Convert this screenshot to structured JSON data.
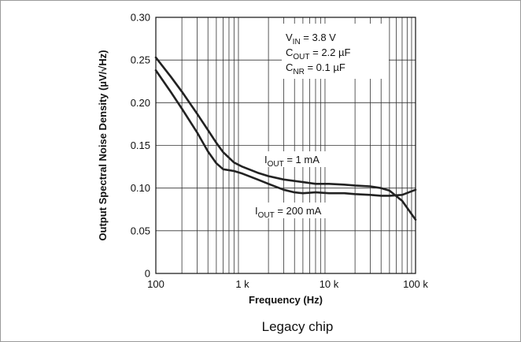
{
  "chart_data": {
    "type": "line",
    "xlabel": "Frequency (Hz)",
    "ylabel": "Output Spectral Noise Density (µV/√Hz)",
    "xscale": "log",
    "xlim": [
      100,
      100000
    ],
    "ylim": [
      0,
      0.3
    ],
    "grid": true,
    "x_ticks": [
      {
        "value": 100,
        "label": "100"
      },
      {
        "value": 1000,
        "label": "1 k"
      },
      {
        "value": 10000,
        "label": "10 k"
      },
      {
        "value": 100000,
        "label": "100 k"
      }
    ],
    "y_ticks": [
      {
        "value": 0,
        "label": "0"
      },
      {
        "value": 0.05,
        "label": "0.05"
      },
      {
        "value": 0.1,
        "label": "0.10"
      },
      {
        "value": 0.15,
        "label": "0.15"
      },
      {
        "value": 0.2,
        "label": "0.20"
      },
      {
        "value": 0.25,
        "label": "0.25"
      },
      {
        "value": 0.3,
        "label": "0.30"
      }
    ],
    "conditions": [
      {
        "main": "V",
        "sub": "IN",
        "rest": " = 3.8 V"
      },
      {
        "main": "C",
        "sub": "OUT",
        "rest": " = 2.2 µF"
      },
      {
        "main": "C",
        "sub": "NR",
        "rest": " = 0.1 µF"
      }
    ],
    "series": [
      {
        "name": "I_OUT = 1 mA",
        "label_parts": {
          "main": "I",
          "sub": "OUT",
          "rest": " = 1 mA"
        },
        "color": "#222222",
        "x": [
          100,
          150,
          200,
          300,
          400,
          500,
          600,
          800,
          1000,
          1500,
          2000,
          3000,
          5000,
          7000,
          10000,
          15000,
          20000,
          30000,
          40000,
          50000,
          70000,
          100000
        ],
        "y": [
          0.253,
          0.23,
          0.213,
          0.187,
          0.168,
          0.153,
          0.142,
          0.13,
          0.125,
          0.118,
          0.114,
          0.11,
          0.107,
          0.105,
          0.105,
          0.104,
          0.103,
          0.102,
          0.1,
          0.097,
          0.085,
          0.063
        ]
      },
      {
        "name": "I_OUT = 200 mA",
        "label_parts": {
          "main": "I",
          "sub": "OUT",
          "rest": " = 200 mA"
        },
        "color": "#222222",
        "x": [
          100,
          150,
          200,
          300,
          400,
          500,
          600,
          800,
          1000,
          1500,
          2000,
          3000,
          4000,
          5000,
          7000,
          10000,
          15000,
          20000,
          30000,
          40000,
          50000,
          70000,
          100000
        ],
        "y": [
          0.238,
          0.212,
          0.193,
          0.165,
          0.143,
          0.129,
          0.122,
          0.12,
          0.117,
          0.11,
          0.105,
          0.098,
          0.095,
          0.094,
          0.095,
          0.094,
          0.094,
          0.093,
          0.092,
          0.091,
          0.091,
          0.092,
          0.098
        ]
      }
    ],
    "caption": "Legacy chip"
  }
}
